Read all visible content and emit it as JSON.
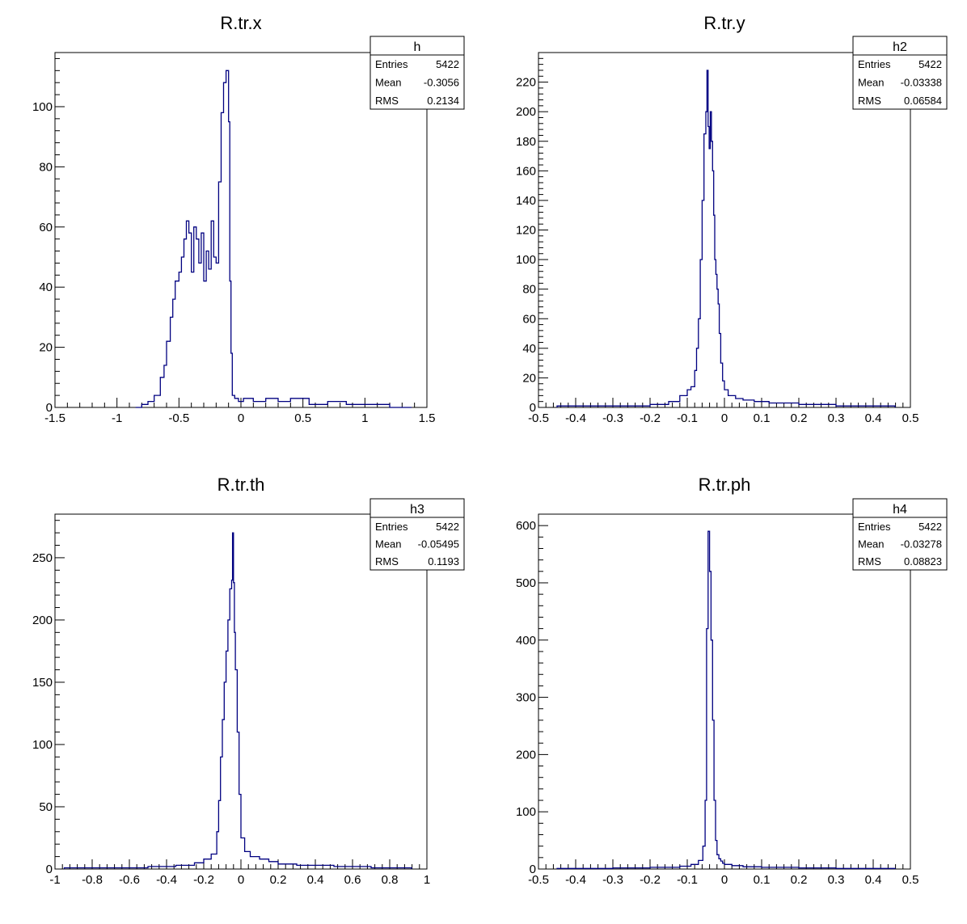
{
  "chart_data": [
    {
      "type": "histogram",
      "title": "R.tr.x",
      "xlim": [
        -1.5,
        1.5
      ],
      "ylim": [
        0,
        118
      ],
      "x_ticks": [
        -1.5,
        -1,
        -0.5,
        0,
        0.5,
        1,
        1.5
      ],
      "x_tick_labels": [
        "-1.5",
        "-1",
        "-0.5",
        "0",
        "0.5",
        "1",
        "1.5"
      ],
      "y_ticks": [
        0,
        20,
        40,
        60,
        80,
        100
      ],
      "y_tick_labels": [
        "0",
        "20",
        "40",
        "60",
        "80",
        "100"
      ],
      "line_color": "#000080",
      "stats": {
        "name": "h",
        "rows": [
          {
            "label": "Entries",
            "value": "5422"
          },
          {
            "label": "Mean",
            "value": "-0.3056"
          },
          {
            "label": "RMS",
            "value": "0.2134"
          }
        ]
      },
      "bins": {
        "x": [
          -0.85,
          -0.8,
          -0.75,
          -0.7,
          -0.65,
          -0.62,
          -0.6,
          -0.57,
          -0.55,
          -0.53,
          -0.5,
          -0.48,
          -0.46,
          -0.44,
          -0.42,
          -0.4,
          -0.38,
          -0.36,
          -0.34,
          -0.32,
          -0.3,
          -0.28,
          -0.26,
          -0.24,
          -0.22,
          -0.2,
          -0.18,
          -0.16,
          -0.14,
          -0.12,
          -0.1,
          -0.09,
          -0.08,
          -0.07,
          -0.05,
          -0.02,
          0.02,
          0.1,
          0.2,
          0.3,
          0.4,
          0.55,
          0.7,
          0.85,
          1.0,
          1.2,
          1.35
        ],
        "y": [
          0,
          1,
          2,
          4,
          10,
          14,
          22,
          30,
          36,
          42,
          45,
          50,
          56,
          62,
          58,
          45,
          60,
          56,
          48,
          58,
          42,
          52,
          46,
          62,
          50,
          48,
          75,
          98,
          108,
          112,
          95,
          42,
          18,
          4,
          3,
          2,
          3,
          2,
          3,
          2,
          3,
          1,
          2,
          1,
          1,
          0,
          0
        ]
      }
    },
    {
      "type": "histogram",
      "title": "R.tr.y",
      "xlim": [
        -0.5,
        0.5
      ],
      "ylim": [
        0,
        240
      ],
      "x_ticks": [
        -0.5,
        -0.4,
        -0.3,
        -0.2,
        -0.1,
        0,
        0.1,
        0.2,
        0.3,
        0.4,
        0.5
      ],
      "x_tick_labels": [
        "-0.5",
        "-0.4",
        "-0.3",
        "-0.2",
        "-0.1",
        "0",
        "0.1",
        "0.2",
        "0.3",
        "0.4",
        "0.5"
      ],
      "y_ticks": [
        0,
        20,
        40,
        60,
        80,
        100,
        120,
        140,
        160,
        180,
        200,
        220
      ],
      "y_tick_labels": [
        "0",
        "20",
        "40",
        "60",
        "80",
        "100",
        "120",
        "140",
        "160",
        "180",
        "200",
        "220"
      ],
      "line_color": "#000080",
      "stats": {
        "name": "h2",
        "rows": [
          {
            "label": "Entries",
            "value": "5422"
          },
          {
            "label": "Mean",
            "value": "-0.03338"
          },
          {
            "label": "RMS",
            "value": "0.06584"
          }
        ]
      },
      "bins": {
        "x": [
          -0.45,
          -0.3,
          -0.2,
          -0.15,
          -0.12,
          -0.1,
          -0.09,
          -0.08,
          -0.075,
          -0.07,
          -0.065,
          -0.06,
          -0.055,
          -0.05,
          -0.047,
          -0.044,
          -0.041,
          -0.038,
          -0.035,
          -0.032,
          -0.029,
          -0.026,
          -0.023,
          -0.02,
          -0.017,
          -0.014,
          -0.01,
          -0.005,
          0.0,
          0.01,
          0.03,
          0.05,
          0.08,
          0.12,
          0.2,
          0.3,
          0.45
        ],
        "y": [
          1,
          1,
          2,
          4,
          8,
          12,
          14,
          25,
          40,
          60,
          100,
          140,
          185,
          200,
          228,
          190,
          175,
          200,
          180,
          160,
          130,
          100,
          90,
          80,
          70,
          50,
          30,
          18,
          12,
          8,
          6,
          5,
          4,
          3,
          2,
          1,
          1
        ]
      }
    },
    {
      "type": "histogram",
      "title": "R.tr.th",
      "xlim": [
        -1,
        1
      ],
      "ylim": [
        0,
        285
      ],
      "x_ticks": [
        -1,
        -0.8,
        -0.6,
        -0.4,
        -0.2,
        0,
        0.2,
        0.4,
        0.6,
        0.8,
        1
      ],
      "x_tick_labels": [
        "-1",
        "-0.8",
        "-0.6",
        "-0.4",
        "-0.2",
        "0",
        "0.2",
        "0.4",
        "0.6",
        "0.8",
        "1"
      ],
      "y_ticks": [
        0,
        50,
        100,
        150,
        200,
        250
      ],
      "y_tick_labels": [
        "0",
        "50",
        "100",
        "150",
        "200",
        "250"
      ],
      "line_color": "#000080",
      "stats": {
        "name": "h3",
        "rows": [
          {
            "label": "Entries",
            "value": "5422"
          },
          {
            "label": "Mean",
            "value": "-0.05495"
          },
          {
            "label": "RMS",
            "value": "0.1193"
          }
        ]
      },
      "bins": {
        "x": [
          -0.95,
          -0.7,
          -0.5,
          -0.35,
          -0.25,
          -0.2,
          -0.16,
          -0.13,
          -0.12,
          -0.11,
          -0.1,
          -0.09,
          -0.08,
          -0.07,
          -0.06,
          -0.05,
          -0.045,
          -0.04,
          -0.035,
          -0.03,
          -0.02,
          -0.01,
          0.0,
          0.02,
          0.05,
          0.1,
          0.15,
          0.2,
          0.3,
          0.5,
          0.7,
          0.9
        ],
        "y": [
          1,
          1,
          2,
          3,
          5,
          8,
          12,
          30,
          55,
          90,
          120,
          150,
          175,
          200,
          225,
          232,
          270,
          230,
          190,
          160,
          110,
          60,
          25,
          14,
          10,
          8,
          6,
          4,
          3,
          2,
          1,
          1
        ]
      }
    },
    {
      "type": "histogram",
      "title": "R.tr.ph",
      "xlim": [
        -0.5,
        0.5
      ],
      "ylim": [
        0,
        620
      ],
      "x_ticks": [
        -0.5,
        -0.4,
        -0.3,
        -0.2,
        -0.1,
        0,
        0.1,
        0.2,
        0.3,
        0.4,
        0.5
      ],
      "x_tick_labels": [
        "-0.5",
        "-0.4",
        "-0.3",
        "-0.2",
        "-0.1",
        "0",
        "0.1",
        "0.2",
        "0.3",
        "0.4",
        "0.5"
      ],
      "y_ticks": [
        0,
        100,
        200,
        300,
        400,
        500,
        600
      ],
      "y_tick_labels": [
        "0",
        "100",
        "200",
        "300",
        "400",
        "500",
        "600"
      ],
      "line_color": "#000080",
      "stats": {
        "name": "h4",
        "rows": [
          {
            "label": "Entries",
            "value": "5422"
          },
          {
            "label": "Mean",
            "value": "-0.03278"
          },
          {
            "label": "RMS",
            "value": "0.08823"
          }
        ]
      },
      "bins": {
        "x": [
          -0.45,
          -0.3,
          -0.2,
          -0.12,
          -0.09,
          -0.07,
          -0.058,
          -0.052,
          -0.048,
          -0.044,
          -0.04,
          -0.036,
          -0.032,
          -0.028,
          -0.024,
          -0.02,
          -0.015,
          -0.01,
          -0.005,
          0.0,
          0.02,
          0.05,
          0.1,
          0.2,
          0.3,
          0.45
        ],
        "y": [
          1,
          2,
          3,
          5,
          8,
          15,
          40,
          120,
          420,
          590,
          520,
          400,
          260,
          120,
          50,
          25,
          18,
          14,
          10,
          8,
          6,
          4,
          3,
          2,
          1,
          1
        ]
      }
    }
  ]
}
